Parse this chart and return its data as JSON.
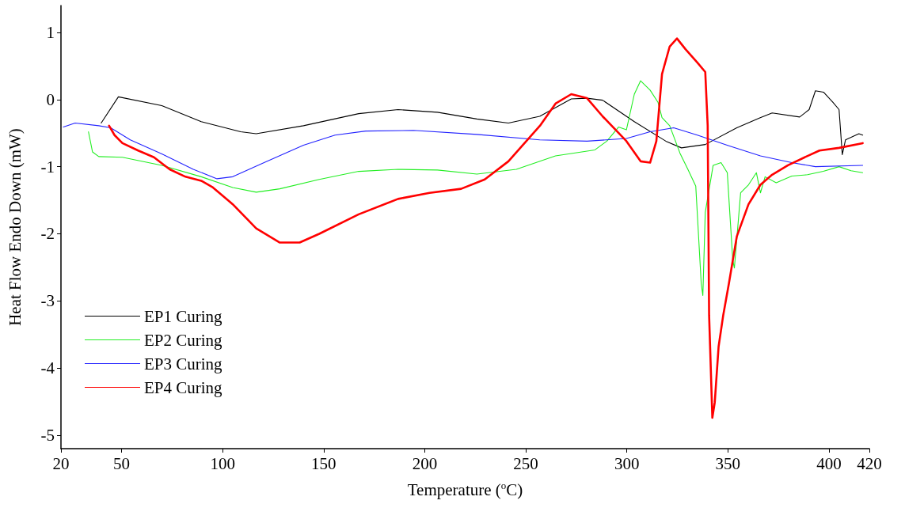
{
  "chart_data": {
    "type": "line",
    "xlabel": "Temperature ($^{o}$C)",
    "ylabel": "Heat Flow Endo Down (mW)",
    "xlim": [
      20,
      420
    ],
    "xticks": [
      20,
      50,
      100,
      150,
      200,
      250,
      300,
      350,
      400,
      420
    ],
    "ylim": [
      -5.2,
      1.4
    ],
    "yticks": [
      -5,
      -4,
      -3,
      -2,
      -1,
      0,
      1
    ],
    "grid": false,
    "legend": "bottom left",
    "marker": "none",
    "line_style": "solid",
    "series": [
      {
        "name": "EP1 Curing",
        "color": "#000000",
        "x": [
          39.9,
          48.4,
          69.9,
          89.4,
          108.9,
          116.6,
          140,
          167.3,
          186.8,
          206.3,
          225.8,
          241.4,
          256.9,
          272.5,
          280.3,
          288,
          303.7,
          319.3,
          327,
          338.8,
          354.4,
          366,
          371.9,
          385.5,
          390.2,
          393.3,
          397.3,
          401.9,
          405,
          406.6,
          408.2,
          414.8,
          416.7
        ],
        "values": [
          -0.35,
          0.04,
          -0.09,
          -0.33,
          -0.48,
          -0.51,
          -0.39,
          -0.21,
          -0.15,
          -0.19,
          -0.29,
          -0.35,
          -0.25,
          0.01,
          0.02,
          -0.01,
          -0.33,
          -0.62,
          -0.72,
          -0.67,
          -0.42,
          -0.27,
          -0.2,
          -0.26,
          -0.15,
          0.13,
          0.11,
          -0.04,
          -0.15,
          -0.82,
          -0.6,
          -0.51,
          -0.53
        ]
      },
      {
        "name": "EP2 Curing",
        "color": "#22ee22",
        "x": [
          33.6,
          35.6,
          38.7,
          50.4,
          69.9,
          89.4,
          105,
          116.6,
          128.3,
          147.8,
          167.3,
          186.8,
          206.3,
          225.8,
          245.3,
          264.7,
          284.2,
          290.1,
          295.9,
          299.8,
          303.7,
          306.8,
          311.5,
          315.4,
          317.4,
          321.2,
          326.3,
          330.2,
          334.1,
          336.8,
          337.6,
          338.8,
          342.7,
          346.6,
          349.7,
          352.4,
          353.2,
          356.3,
          360.2,
          364.1,
          366.1,
          368.4,
          373.9,
          381.6,
          389.4,
          397.2,
          405,
          410.9,
          416.7
        ],
        "values": [
          -0.48,
          -0.78,
          -0.85,
          -0.86,
          -0.98,
          -1.15,
          -1.31,
          -1.38,
          -1.33,
          -1.19,
          -1.07,
          -1.04,
          -1.05,
          -1.11,
          -1.04,
          -0.84,
          -0.75,
          -0.62,
          -0.41,
          -0.45,
          0.08,
          0.28,
          0.14,
          -0.04,
          -0.27,
          -0.39,
          -0.8,
          -1.04,
          -1.29,
          -2.74,
          -2.92,
          -1.68,
          -0.98,
          -0.94,
          -1.09,
          -2.39,
          -2.51,
          -1.39,
          -1.27,
          -1.09,
          -1.39,
          -1.15,
          -1.24,
          -1.14,
          -1.12,
          -1.07,
          -1.0,
          -1.06,
          -1.09
        ]
      },
      {
        "name": "EP3 Curing",
        "color": "#2222ff",
        "x": [
          21.2,
          27,
          38.7,
          44.6,
          54.3,
          69.9,
          85.5,
          97.2,
          105,
          120.5,
          140,
          155.6,
          170.8,
          194.4,
          225.8,
          256.9,
          280.3,
          299.8,
          311.5,
          323.2,
          334.9,
          350.5,
          366.1,
          381.6,
          393.3,
          416.7
        ],
        "values": [
          -0.41,
          -0.35,
          -0.39,
          -0.42,
          -0.6,
          -0.81,
          -1.04,
          -1.18,
          -1.15,
          -0.94,
          -0.68,
          -0.53,
          -0.47,
          -0.46,
          -0.52,
          -0.6,
          -0.62,
          -0.58,
          -0.48,
          -0.42,
          -0.53,
          -0.69,
          -0.84,
          -0.94,
          -1.0,
          -0.98
        ]
      },
      {
        "name": "EP4 Curing",
        "color": "#ff0000",
        "x": [
          43.8,
          46.5,
          50.4,
          58.2,
          66,
          73.8,
          81.6,
          89.4,
          95.2,
          105,
          116.6,
          128.3,
          138.1,
          147.8,
          167.3,
          186.8,
          202.4,
          218,
          229.7,
          241.4,
          257,
          264.7,
          272.5,
          280.3,
          288,
          299.8,
          306.8,
          311.5,
          314.6,
          317.4,
          321.2,
          324.8,
          329,
          334.9,
          338.8,
          340,
          340.7,
          342.3,
          343.5,
          345.4,
          347.7,
          350.5,
          354.4,
          360.2,
          366.1,
          371.9,
          379.7,
          389.4,
          395.3,
          405,
          416.7
        ],
        "values": [
          -0.39,
          -0.53,
          -0.65,
          -0.76,
          -0.86,
          -1.04,
          -1.15,
          -1.21,
          -1.31,
          -1.56,
          -1.92,
          -2.13,
          -2.13,
          -2.0,
          -1.71,
          -1.48,
          -1.39,
          -1.33,
          -1.19,
          -0.92,
          -0.39,
          -0.06,
          0.08,
          0.02,
          -0.25,
          -0.62,
          -0.92,
          -0.94,
          -0.62,
          0.38,
          0.79,
          0.91,
          0.75,
          0.55,
          0.41,
          -0.39,
          -3.21,
          -4.74,
          -4.51,
          -3.68,
          -3.21,
          -2.74,
          -2.04,
          -1.56,
          -1.27,
          -1.12,
          -0.98,
          -0.84,
          -0.76,
          -0.72,
          -0.65
        ]
      }
    ]
  }
}
